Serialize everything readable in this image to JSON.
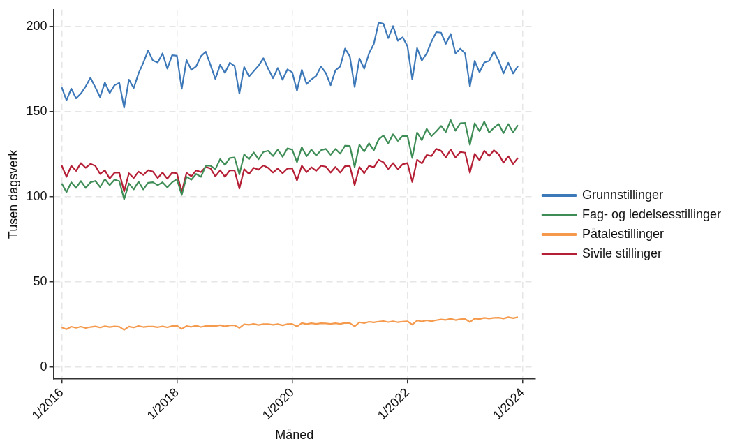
{
  "chart_data": {
    "type": "line",
    "xlabel": "Måned",
    "ylabel": "Tusen dagsverk",
    "x": [
      "2016-01",
      "2016-02",
      "2016-03",
      "2016-04",
      "2016-05",
      "2016-06",
      "2016-07",
      "2016-08",
      "2016-09",
      "2016-10",
      "2016-11",
      "2016-12",
      "2017-01",
      "2017-02",
      "2017-03",
      "2017-04",
      "2017-05",
      "2017-06",
      "2017-07",
      "2017-08",
      "2017-09",
      "2017-10",
      "2017-11",
      "2017-12",
      "2018-01",
      "2018-02",
      "2018-03",
      "2018-04",
      "2018-05",
      "2018-06",
      "2018-07",
      "2018-08",
      "2018-09",
      "2018-10",
      "2018-11",
      "2018-12",
      "2019-01",
      "2019-02",
      "2019-03",
      "2019-04",
      "2019-05",
      "2019-06",
      "2019-07",
      "2019-08",
      "2019-09",
      "2019-10",
      "2019-11",
      "2019-12",
      "2020-01",
      "2020-02",
      "2020-03",
      "2020-04",
      "2020-05",
      "2020-06",
      "2020-07",
      "2020-08",
      "2020-09",
      "2020-10",
      "2020-11",
      "2020-12",
      "2021-01",
      "2021-02",
      "2021-03",
      "2021-04",
      "2021-05",
      "2021-06",
      "2021-07",
      "2021-08",
      "2021-09",
      "2021-10",
      "2021-11",
      "2021-12",
      "2022-01",
      "2022-02",
      "2022-03",
      "2022-04",
      "2022-05",
      "2022-06",
      "2022-07",
      "2022-08",
      "2022-09",
      "2022-10",
      "2022-11",
      "2022-12",
      "2023-01",
      "2023-02",
      "2023-03",
      "2023-04",
      "2023-05",
      "2023-06",
      "2023-07",
      "2023-08",
      "2023-09",
      "2023-10",
      "2023-11",
      "2023-12"
    ],
    "series": [
      {
        "name": "Grunnstillinger",
        "color": "#3d78b9",
        "values": [
          164.4,
          156.8,
          163.6,
          157.9,
          160.7,
          164.9,
          170,
          164.4,
          158.6,
          167.2,
          161,
          165.6,
          167,
          152.4,
          168.9,
          163.9,
          172.5,
          178.8,
          186,
          180.1,
          179,
          184.3,
          175.3,
          183.2,
          182.9,
          163.5,
          180.4,
          174.6,
          176.7,
          182.6,
          185.3,
          177.4,
          169.3,
          177.6,
          172.8,
          178.8,
          176.9,
          160.7,
          176.3,
          170.7,
          173.9,
          177.1,
          181.5,
          175.3,
          169.7,
          175.7,
          168.8,
          174.9,
          173.2,
          162.4,
          174.6,
          166.3,
          169,
          171.1,
          176.7,
          172.8,
          165.6,
          174.3,
          176.7,
          187.1,
          182.6,
          164.6,
          181.3,
          175.3,
          184.3,
          189.9,
          202.4,
          201.7,
          193.3,
          200.3,
          191.7,
          193.8,
          188.5,
          169,
          187.4,
          180.1,
          184.3,
          191.3,
          196.8,
          196.5,
          189.9,
          195.7,
          184.3,
          187.1,
          184.3,
          164.9,
          179.9,
          173.2,
          179,
          179.9,
          185.4,
          180.1,
          172.5,
          178.8,
          172.5,
          176.9
        ]
      },
      {
        "name": "Fag- og ledelsesstillinger",
        "color": "#3f8d56",
        "values": [
          107.9,
          102.8,
          108.6,
          105.3,
          109.3,
          105.3,
          108.6,
          109.4,
          105.8,
          110.4,
          106.9,
          110.1,
          109.3,
          98.6,
          107.9,
          104.4,
          109,
          104.4,
          108.3,
          108.6,
          106.9,
          108.6,
          105.6,
          108.6,
          110.4,
          101.1,
          111.8,
          110.1,
          113.5,
          111.8,
          118.3,
          118.3,
          116.3,
          122.2,
          118.8,
          122.9,
          123.2,
          113.2,
          125,
          122.2,
          126.1,
          122.2,
          126.4,
          127.1,
          124,
          127.8,
          123.6,
          128.5,
          127.8,
          120.4,
          129.2,
          123.9,
          127.8,
          124.3,
          127.4,
          128.2,
          124.7,
          128.2,
          125.4,
          130.1,
          129.9,
          117.6,
          130.6,
          126.7,
          131.5,
          127.4,
          133.8,
          136.1,
          131.5,
          136.8,
          132.9,
          135.8,
          135.8,
          122.9,
          137.8,
          133.3,
          140,
          135.7,
          138.5,
          141.7,
          138.2,
          145.1,
          138.9,
          143.3,
          143.5,
          130.6,
          143.3,
          138.6,
          144.2,
          137.8,
          140.6,
          142.8,
          137.5,
          142.8,
          137.9,
          142.1
        ]
      },
      {
        "name": "Påtalestillinger",
        "color": "#f59a4c",
        "values": [
          23.4,
          22.3,
          23.8,
          23.1,
          23.8,
          23.0,
          23.6,
          24.0,
          23.3,
          24.1,
          23.6,
          24.0,
          23.8,
          21.9,
          23.9,
          23.3,
          24.2,
          23.6,
          23.9,
          23.9,
          23.5,
          24.0,
          23.4,
          24.2,
          24.4,
          22.5,
          24.2,
          23.7,
          24.4,
          23.6,
          24.2,
          24.4,
          24.2,
          24.7,
          24.0,
          24.6,
          24.6,
          23.1,
          25.2,
          24.9,
          25.4,
          24.8,
          25.3,
          25.3,
          24.9,
          25.3,
          24.6,
          25.3,
          25.4,
          23.9,
          25.9,
          25.3,
          25.8,
          25.4,
          25.8,
          25.7,
          25.4,
          25.8,
          25.4,
          26.0,
          25.9,
          24.0,
          26.4,
          25.9,
          26.7,
          26.3,
          26.8,
          27.1,
          26.5,
          27.0,
          26.4,
          26.8,
          27.0,
          25.0,
          27.4,
          26.9,
          27.5,
          27.0,
          27.6,
          28.1,
          27.8,
          28.5,
          27.7,
          28.2,
          28.4,
          26.5,
          28.6,
          28.3,
          29.0,
          28.6,
          29.0,
          29.1,
          28.6,
          29.4,
          28.8,
          29.4
        ]
      },
      {
        "name": "Sivile stillinger",
        "color": "#b51f35",
        "values": [
          118.5,
          111.8,
          118.3,
          115.3,
          119.9,
          117.1,
          119.4,
          118.3,
          113.5,
          115.6,
          110.8,
          114.2,
          114.2,
          103.2,
          113.9,
          111.1,
          114.9,
          112.9,
          115.7,
          114.9,
          111.1,
          114.3,
          110.7,
          114.2,
          113.9,
          102.8,
          114.2,
          112.1,
          115.6,
          114.6,
          117.6,
          116.7,
          112.1,
          115.7,
          111.8,
          115.6,
          115.6,
          104.9,
          116.3,
          113.5,
          117.1,
          116,
          118.5,
          117.1,
          114.3,
          116.7,
          113.9,
          116.7,
          116.7,
          109.7,
          118.3,
          114.6,
          117.4,
          115.3,
          118.3,
          117.8,
          114.3,
          117.6,
          114.3,
          118.1,
          118.1,
          106.9,
          117.6,
          113.9,
          118.3,
          117.4,
          121.8,
          120.4,
          116.4,
          119.9,
          116.3,
          119.2,
          119.9,
          108.8,
          121.8,
          119.7,
          124.6,
          124,
          128.2,
          127.1,
          123.3,
          127.8,
          123.2,
          126.4,
          126,
          114.2,
          125.3,
          121.5,
          127.1,
          124,
          127.4,
          125,
          120.1,
          123.9,
          119.4,
          122.9
        ]
      }
    ],
    "xlim": [
      "2015-11-10",
      "2024-03-20"
    ],
    "xticks": [
      {
        "value": "2016-01",
        "label": "1/2016"
      },
      {
        "value": "2018-01",
        "label": "1/2018"
      },
      {
        "value": "2020-01",
        "label": "1/2020"
      },
      {
        "value": "2022-01",
        "label": "1/2022"
      },
      {
        "value": "2024-01",
        "label": "1/2024"
      }
    ],
    "ylim": [
      -7,
      210
    ],
    "yticks": [
      0,
      50,
      100,
      150,
      200
    ],
    "grid": true,
    "legend": "right",
    "marker": "none",
    "line_style": "solid"
  }
}
